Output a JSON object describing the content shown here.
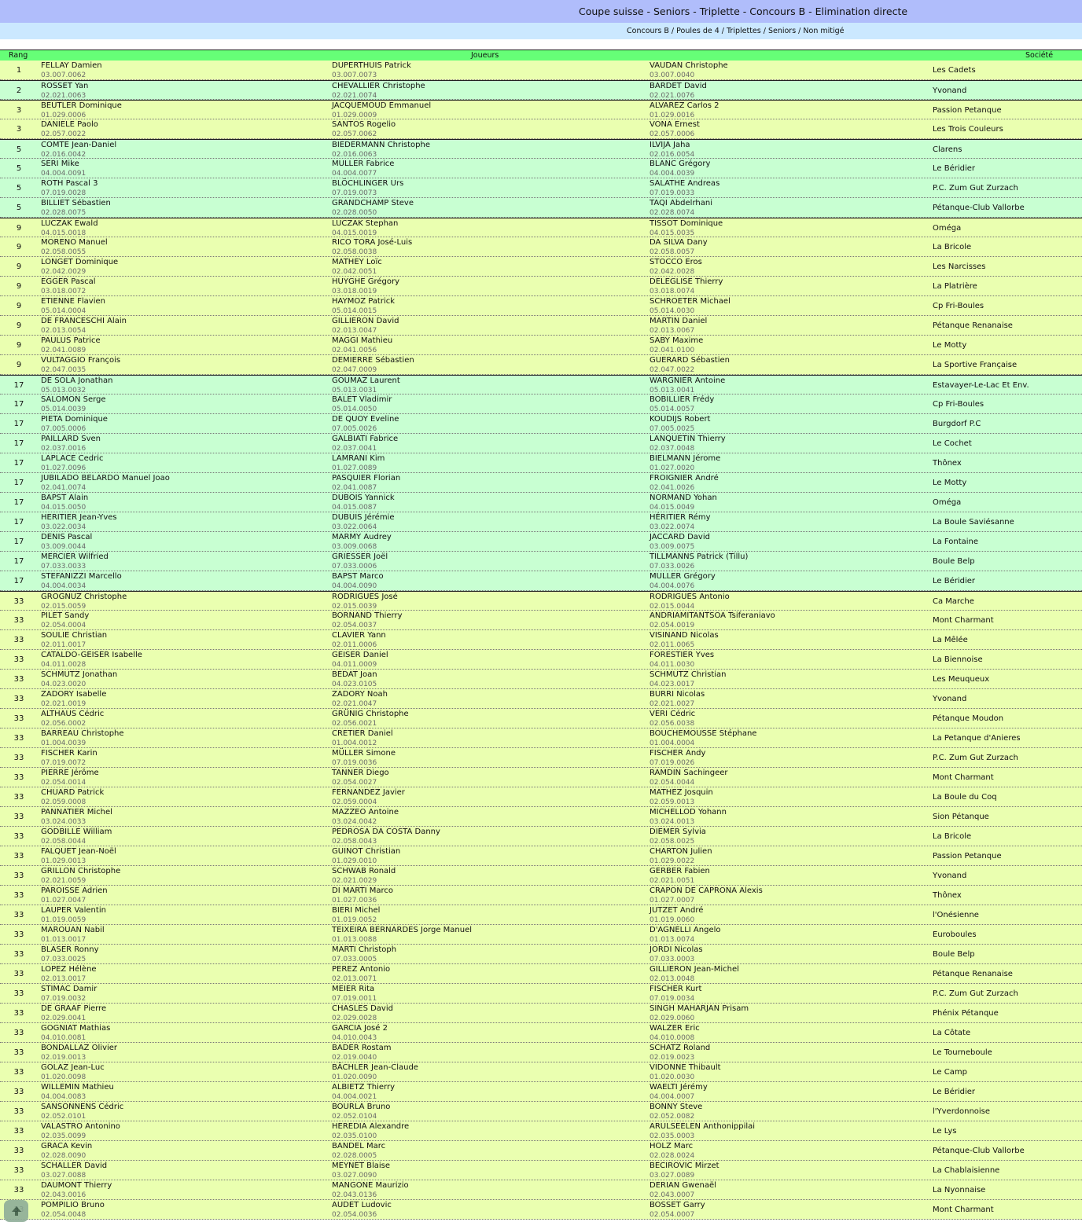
{
  "header": {
    "title": "Coupe suisse - Seniors - Triplette - Concours B - Elimination directe",
    "subtitle": "Concours B / Poules de 4 / Triplettes / Seniors / Non mitigé"
  },
  "table": {
    "columns": {
      "rank": "Rang",
      "players": "Joueurs",
      "club": "Société"
    },
    "colors": {
      "yellow": "#eaffb0",
      "green": "#c8ffd2",
      "header": "#66ff77"
    },
    "rows": [
      [
        "1",
        "FELLAY Damien",
        "03.007.0062",
        "DUPERTHUIS Patrick",
        "03.007.0073",
        "VAUDAN Christophe",
        "03.007.0040",
        "Les Cadets"
      ],
      [
        "2",
        "ROSSET Yan",
        "02.021.0063",
        "CHEVALLIER Christophe",
        "02.021.0074",
        "BARDET David",
        "02.021.0076",
        "Yvonand"
      ],
      [
        "3",
        "BEUTLER Dominique",
        "01.029.0006",
        "JACQUEMOUD Emmanuel",
        "01.029.0009",
        "ALVAREZ Carlos 2",
        "01.029.0016",
        "Passion Petanque"
      ],
      [
        "3",
        "DANIELE Paolo",
        "02.057.0022",
        "SANTOS Rogelio",
        "02.057.0062",
        "VONA Ernest",
        "02.057.0006",
        "Les Trois Couleurs"
      ],
      [
        "5",
        "COMTE Jean-Daniel",
        "02.016.0042",
        "BIEDERMANN Christophe",
        "02.016.0063",
        "ILVIJA Jaha",
        "02.016.0054",
        "Clarens"
      ],
      [
        "5",
        "SERI Mike",
        "04.004.0091",
        "MULLER Fabrice",
        "04.004.0077",
        "BLANC Grégory",
        "04.004.0039",
        "Le Béridier"
      ],
      [
        "5",
        "ROTH Pascal 3",
        "07.019.0028",
        "BLÖCHLINGER Urs",
        "07.019.0073",
        "SALATHE Andreas",
        "07.019.0033",
        "P.C. Zum Gut Zurzach"
      ],
      [
        "5",
        "BILLIET Sébastien",
        "02.028.0075",
        "GRANDCHAMP Steve",
        "02.028.0050",
        "TAQI Abdelrhani",
        "02.028.0074",
        "Pétanque-Club Vallorbe"
      ],
      [
        "9",
        "LUCZAK Ewald",
        "04.015.0018",
        "LUCZAK Stephan",
        "04.015.0019",
        "TISSOT Dominique",
        "04.015.0035",
        "Oméga"
      ],
      [
        "9",
        "MORENO Manuel",
        "02.058.0055",
        "RICO TORA José-Luis",
        "02.058.0038",
        "DA SILVA Dany",
        "02.058.0057",
        "La Bricole"
      ],
      [
        "9",
        "LONGET Dominique",
        "02.042.0029",
        "MATHEY Loïc",
        "02.042.0051",
        "STOCCO Eros",
        "02.042.0028",
        "Les Narcisses"
      ],
      [
        "9",
        "EGGER Pascal",
        "03.018.0072",
        "HUYGHE Grégory",
        "03.018.0019",
        "DELEGLISE Thierry",
        "03.018.0074",
        "La Platrière"
      ],
      [
        "9",
        "ETIENNE Flavien",
        "05.014.0004",
        "HAYMOZ Patrick",
        "05.014.0015",
        "SCHROETER Michael",
        "05.014.0030",
        "Cp Fri-Boules"
      ],
      [
        "9",
        "DE FRANCESCHI Alain",
        "02.013.0054",
        "GILLIERON David",
        "02.013.0047",
        "MARTIN Daniel",
        "02.013.0067",
        "Pétanque Renanaise"
      ],
      [
        "9",
        "PAULUS Patrice",
        "02.041.0089",
        "MAGGI Mathieu",
        "02.041.0056",
        "SABY Maxime",
        "02.041.0100",
        "Le Motty"
      ],
      [
        "9",
        "VULTAGGIO François",
        "02.047.0035",
        "DEMIERRE Sébastien",
        "02.047.0009",
        "GUERARD Sébastien",
        "02.047.0022",
        "La Sportive Française"
      ],
      [
        "17",
        "DE SOLA Jonathan",
        "05.013.0032",
        "GOUMAZ Laurent",
        "05.013.0031",
        "WARGNIER Antoine",
        "05.013.0041",
        "Estavayer-Le-Lac Et Env."
      ],
      [
        "17",
        "SALOMON Serge",
        "05.014.0039",
        "BALET Vladimir",
        "05.014.0050",
        "BOBILLIER Frédy",
        "05.014.0057",
        "Cp Fri-Boules"
      ],
      [
        "17",
        "PIETA Dominique",
        "07.005.0006",
        "DE QUOY Eveline",
        "07.005.0026",
        "KOUDIJS Robert",
        "07.005.0025",
        "Burgdorf P.C"
      ],
      [
        "17",
        "PAILLARD Sven",
        "02.037.0016",
        "GALBIATI Fabrice",
        "02.037.0041",
        "LANQUETIN Thierry",
        "02.037.0048",
        "Le Cochet"
      ],
      [
        "17",
        "LAPLACE Cedric",
        "01.027.0096",
        "LAMRANI Kim",
        "01.027.0089",
        "BIELMANN Jérome",
        "01.027.0020",
        "Thônex"
      ],
      [
        "17",
        "JUBILADO BELARDO Manuel Joao",
        "02.041.0074",
        "PASQUIER Florian",
        "02.041.0087",
        "FROIGNIER André",
        "02.041.0026",
        "Le Motty"
      ],
      [
        "17",
        "BAPST Alain",
        "04.015.0050",
        "DUBOIS Yannick",
        "04.015.0087",
        "NORMAND Yohan",
        "04.015.0049",
        "Oméga"
      ],
      [
        "17",
        "HERITIER Jean-Yves",
        "03.022.0034",
        "DUBUIS Jérémie",
        "03.022.0064",
        "HÉRITIER Rémy",
        "03.022.0074",
        "La Boule Saviésanne"
      ],
      [
        "17",
        "DENIS Pascal",
        "03.009.0044",
        "MARMY Audrey",
        "03.009.0068",
        "JACCARD David",
        "03.009.0075",
        "La Fontaine"
      ],
      [
        "17",
        "MERCIER Wilfried",
        "07.033.0033",
        "GRIESSER Joël",
        "07.033.0006",
        "TILLMANNS Patrick (Tillu)",
        "07.033.0026",
        "Boule Belp"
      ],
      [
        "17",
        "STEFANIZZI Marcello",
        "04.004.0034",
        "BAPST Marco",
        "04.004.0090",
        "MULLER Grégory",
        "04.004.0076",
        "Le Béridier"
      ],
      [
        "33",
        "GROGNUZ Christophe",
        "02.015.0059",
        "RODRIGUES José",
        "02.015.0039",
        "RODRIGUES Antonio",
        "02.015.0044",
        "Ca Marche"
      ],
      [
        "33",
        "PILET Sandy",
        "02.054.0004",
        "BORNAND Thierry",
        "02.054.0037",
        "ANDRIAMITANTSOA Tsiferaniavo",
        "02.054.0019",
        "Mont Charmant"
      ],
      [
        "33",
        "SOULIE Christian",
        "02.011.0017",
        "CLAVIER Yann",
        "02.011.0006",
        "VISINAND Nicolas",
        "02.011.0065",
        "La Mêlée"
      ],
      [
        "33",
        "CATALDO-GEISER Isabelle",
        "04.011.0028",
        "GEISER Daniel",
        "04.011.0009",
        "FORESTIER Yves",
        "04.011.0030",
        "La Biennoise"
      ],
      [
        "33",
        "SCHMUTZ Jonathan",
        "04.023.0020",
        "BEDAT Joan",
        "04.023.0105",
        "SCHMUTZ Christian",
        "04.023.0017",
        "Les Meuqueux"
      ],
      [
        "33",
        "ZADORY Isabelle",
        "02.021.0019",
        "ZADORY Noah",
        "02.021.0047",
        "BURRI Nicolas",
        "02.021.0027",
        "Yvonand"
      ],
      [
        "33",
        "ALTHAUS Cédric",
        "02.056.0002",
        "GRÜNIG Christophe",
        "02.056.0021",
        "VERI Cédric",
        "02.056.0038",
        "Pétanque Moudon"
      ],
      [
        "33",
        "BARREAU Christophe",
        "01.004.0039",
        "CRETIER Daniel",
        "01.004.0012",
        "BOUCHEMOUSSE Stéphane",
        "01.004.0004",
        "La Petanque d'Anieres"
      ],
      [
        "33",
        "FISCHER Karin",
        "07.019.0072",
        "MÜLLER Simone",
        "07.019.0036",
        "FISCHER Andy",
        "07.019.0026",
        "P.C. Zum Gut Zurzach"
      ],
      [
        "33",
        "PIERRE Jérôme",
        "02.054.0014",
        "TANNER Diego",
        "02.054.0027",
        "RAMDIN Sachingeer",
        "02.054.0044",
        "Mont Charmant"
      ],
      [
        "33",
        "CHUARD Patrick",
        "02.059.0008",
        "FERNANDEZ Javier",
        "02.059.0004",
        "MATHEZ Josquin",
        "02.059.0013",
        "La Boule du Coq"
      ],
      [
        "33",
        "PANNATIER Michel",
        "03.024.0033",
        "MAZZEO Antoine",
        "03.024.0042",
        "MICHELLOD Yohann",
        "03.024.0013",
        "Sion Pétanque"
      ],
      [
        "33",
        "GODBILLE William",
        "02.058.0044",
        "PEDROSA DA COSTA Danny",
        "02.058.0043",
        "DIEMER Sylvia",
        "02.058.0025",
        "La Bricole"
      ],
      [
        "33",
        "FALQUET Jean-Noël",
        "01.029.0013",
        "GUINOT Christian",
        "01.029.0010",
        "CHARTON Julien",
        "01.029.0022",
        "Passion Petanque"
      ],
      [
        "33",
        "GRILLON Christophe",
        "02.021.0059",
        "SCHWAB Ronald",
        "02.021.0029",
        "GERBER Fabien",
        "02.021.0051",
        "Yvonand"
      ],
      [
        "33",
        "PAROISSE Adrien",
        "01.027.0047",
        "DI MARTI Marco",
        "01.027.0036",
        "CRAPON DE CAPRONA Alexis",
        "01.027.0007",
        "Thônex"
      ],
      [
        "33",
        "LAUPER Valentin",
        "01.019.0059",
        "BIERI Michel",
        "01.019.0052",
        "JUTZET André",
        "01.019.0060",
        "l'Onésienne"
      ],
      [
        "33",
        "MAROUAN Nabil",
        "01.013.0017",
        "TEIXEIRA BERNARDES Jorge Manuel",
        "01.013.0088",
        "D'AGNELLI Angelo",
        "01.013.0074",
        "Euroboules"
      ],
      [
        "33",
        "BLASER Ronny",
        "07.033.0025",
        "MARTI Christoph",
        "07.033.0005",
        "JORDI Nicolas",
        "07.033.0003",
        "Boule Belp"
      ],
      [
        "33",
        "LOPEZ Hélène",
        "02.013.0017",
        "PEREZ Antonio",
        "02.013.0071",
        "GILLIERON Jean-Michel",
        "02.013.0048",
        "Pétanque Renanaise"
      ],
      [
        "33",
        "STIMAC Damir",
        "07.019.0032",
        "MEIER Rita",
        "07.019.0011",
        "FISCHER Kurt",
        "07.019.0034",
        "P.C. Zum Gut Zurzach"
      ],
      [
        "33",
        "DE GRAAF Pierre",
        "02.029.0041",
        "CHASLES David",
        "02.029.0028",
        "SINGH MAHARJAN Prisam",
        "02.029.0060",
        "Phénix Pétanque"
      ],
      [
        "33",
        "GOGNIAT Mathias",
        "04.010.0081",
        "GARCIA José 2",
        "04.010.0043",
        "WALZER Eric",
        "04.010.0008",
        "La Côtate"
      ],
      [
        "33",
        "BONDALLAZ Olivier",
        "02.019.0013",
        "BADER Rostam",
        "02.019.0040",
        "SCHATZ Roland",
        "02.019.0023",
        "Le Tourneboule"
      ],
      [
        "33",
        "GOLAZ Jean-Luc",
        "01.020.0098",
        "BÄCHLER Jean-Claude",
        "01.020.0090",
        "VIDONNE Thibault",
        "01.020.0030",
        "Le Camp"
      ],
      [
        "33",
        "WILLEMIN Mathieu",
        "04.004.0083",
        "ALBIETZ Thierry",
        "04.004.0021",
        "WAELTI Jérémy",
        "04.004.0007",
        "Le Béridier"
      ],
      [
        "33",
        "SANSONNENS Cédric",
        "02.052.0101",
        "BOURLA Bruno",
        "02.052.0104",
        "BONNY Steve",
        "02.052.0082",
        "l'Yverdonnoise"
      ],
      [
        "33",
        "VALASTRO Antonino",
        "02.035.0099",
        "HEREDIA Alexandre",
        "02.035.0100",
        "ARULSEELEN Anthonippilai",
        "02.035.0003",
        "Le Lys"
      ],
      [
        "33",
        "GRACA Kevin",
        "02.028.0090",
        "BANDEL Marc",
        "02.028.0005",
        "HOLZ Marc",
        "02.028.0024",
        "Pétanque-Club Vallorbe"
      ],
      [
        "33",
        "SCHALLER David",
        "03.027.0088",
        "MEYNET Blaise",
        "03.027.0090",
        "BECIROVIC Mirzet",
        "03.027.0089",
        "La Chablaisienne"
      ],
      [
        "33",
        "DAUMONT Thierry",
        "02.043.0016",
        "MANGONE Maurizio",
        "02.043.0136",
        "DERIAN Gwenaël",
        "02.043.0007",
        "La Nyonnaise"
      ],
      [
        "33",
        "POMPILIO Bruno",
        "02.054.0048",
        "AUDET Ludovic",
        "02.054.0036",
        "BOSSET Garry",
        "02.054.0007",
        "Mont Charmant"
      ]
    ]
  },
  "scroll_top": {
    "icon": "arrow-up-icon"
  }
}
